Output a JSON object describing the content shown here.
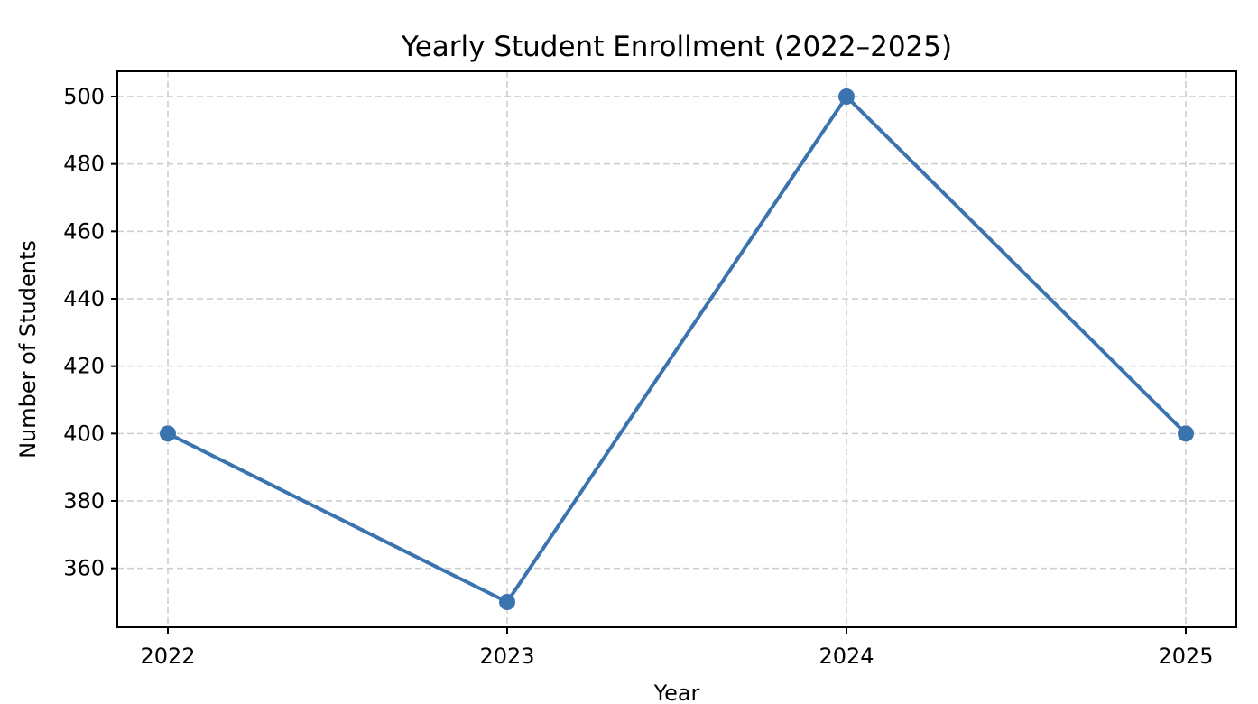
{
  "chart_data": {
    "type": "line",
    "title": "Yearly Student Enrollment (2022–2025)",
    "xlabel": "Year",
    "ylabel": "Number of Students",
    "categories": [
      "2022",
      "2023",
      "2024",
      "2025"
    ],
    "series": [
      {
        "values": [
          400,
          350,
          500,
          400
        ],
        "color": "#3b73af",
        "marker": "circle"
      }
    ],
    "ylim": [
      342.5,
      507.5
    ],
    "y_ticks": [
      360,
      380,
      400,
      420,
      440,
      460,
      480,
      500
    ],
    "grid": true
  }
}
